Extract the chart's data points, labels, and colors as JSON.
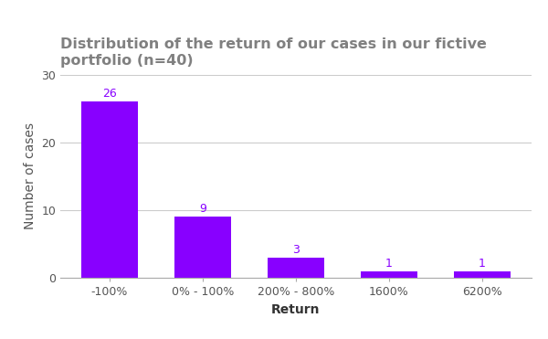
{
  "categories": [
    "-100%",
    "0% - 100%",
    "200% - 800%",
    "1600%",
    "6200%"
  ],
  "values": [
    26,
    9,
    3,
    1,
    1
  ],
  "bar_color": "#8800ff",
  "label_color": "#8800ff",
  "title_line1": "Distribution of the return of our cases in our fictive",
  "title_line2": "portfolio (n=40)",
  "xlabel": "Return",
  "ylabel": "Number of cases",
  "title_color": "#808080",
  "xlabel_color": "#333333",
  "ylabel_color": "#555555",
  "tick_color": "#555555",
  "title_fontsize": 11.5,
  "axis_label_fontsize": 10,
  "tick_label_fontsize": 9,
  "bar_label_fontsize": 9,
  "ylim": [
    0,
    30
  ],
  "yticks": [
    0,
    10,
    20,
    30
  ],
  "background_color": "#ffffff",
  "grid_color": "#cccccc"
}
